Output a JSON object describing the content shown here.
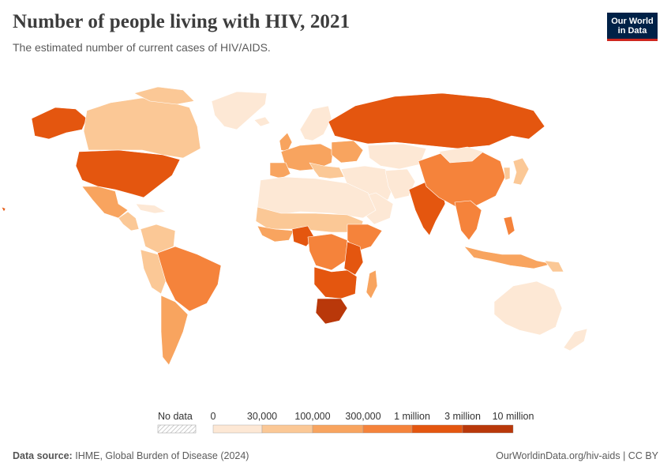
{
  "header": {
    "title": "Number of people living with HIV, 2021",
    "subtitle": "The estimated number of current cases of HIV/AIDS."
  },
  "logo": {
    "line1": "Our World",
    "line2": "in Data"
  },
  "legend": {
    "no_data_label": "No data",
    "bins": [
      {
        "label": "0",
        "color": "#fde8d5"
      },
      {
        "label": "30,000",
        "color": "#fbc896"
      },
      {
        "label": "100,000",
        "color": "#f8a45f"
      },
      {
        "label": "300,000",
        "color": "#f5833b"
      },
      {
        "label": "1 million",
        "color": "#e4560f"
      },
      {
        "label": "3 million",
        "color": "#b9380a"
      },
      {
        "label": "10 million",
        "color": ""
      }
    ]
  },
  "footer": {
    "source_label": "Data source:",
    "source_text": "IHME, Global Burden of Disease (2024)",
    "right_text": "OurWorldinData.org/hiv-aids | CC BY"
  },
  "colors": {
    "bin0": "#fde8d5",
    "bin1": "#fbc896",
    "bin2": "#f8a45f",
    "bin3": "#f5833b",
    "bin4": "#e4560f",
    "bin5": "#b9380a",
    "logo_bg": "#002147",
    "logo_accent": "#ce261e"
  }
}
